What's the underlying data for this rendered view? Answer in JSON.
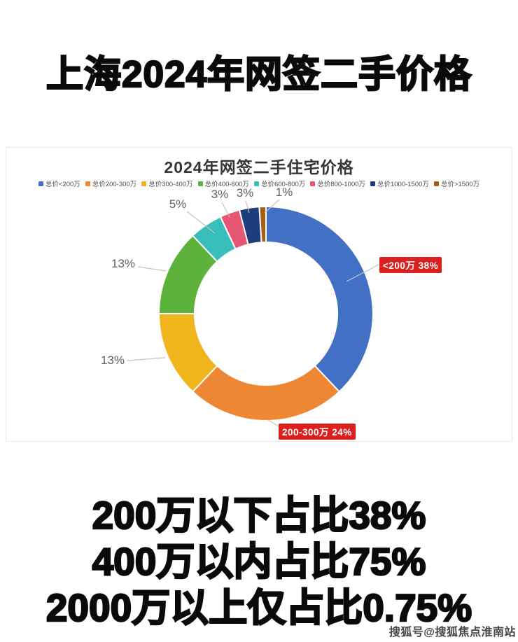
{
  "page": {
    "main_title": "上海2024年网签二手价格",
    "watermark": "搜狐号@搜狐焦点淮南站"
  },
  "summary": {
    "line1": "200万以下占比38%",
    "line2": "400万以内占比75%",
    "line3": "2000万以上仅占比0.75%"
  },
  "chart_data": {
    "type": "pie",
    "subtype": "donut",
    "title": "2024年网签二手住宅价格",
    "legend_position": "top",
    "unit": "%",
    "categories": [
      "总价<200万",
      "总价200-300万",
      "总价300-400万",
      "总价400-600万",
      "总价600-800万",
      "总价800-1000万",
      "总价1000-1500万",
      "总价>1500万"
    ],
    "values": [
      38,
      24,
      13,
      13,
      5,
      3,
      3,
      1
    ],
    "series": [
      {
        "label": "总价<200万",
        "value": 38,
        "pct_label": "38%",
        "color": "#4170c4"
      },
      {
        "label": "总价200-300万",
        "value": 24,
        "pct_label": "24%",
        "color": "#ed8733"
      },
      {
        "label": "总价300-400万",
        "value": 13,
        "pct_label": "13%",
        "color": "#f0b41c"
      },
      {
        "label": "总价400-600万",
        "value": 13,
        "pct_label": "13%",
        "color": "#5db23c"
      },
      {
        "label": "总价600-800万",
        "value": 5,
        "pct_label": "5%",
        "color": "#38bfbc"
      },
      {
        "label": "总价800-1000万",
        "value": 3,
        "pct_label": "3%",
        "color": "#e65673"
      },
      {
        "label": "总价1000-1500万",
        "value": 3,
        "pct_label": "3%",
        "color": "#1d3d7d"
      },
      {
        "label": "总价>1500万",
        "value": 1,
        "pct_label": "1%",
        "color": "#a55f10"
      }
    ],
    "highlight_labels": [
      {
        "text": "<200万 38%",
        "color": "#dc1f1f"
      },
      {
        "text": "200-300万 24%",
        "color": "#dc1f1f"
      }
    ]
  }
}
